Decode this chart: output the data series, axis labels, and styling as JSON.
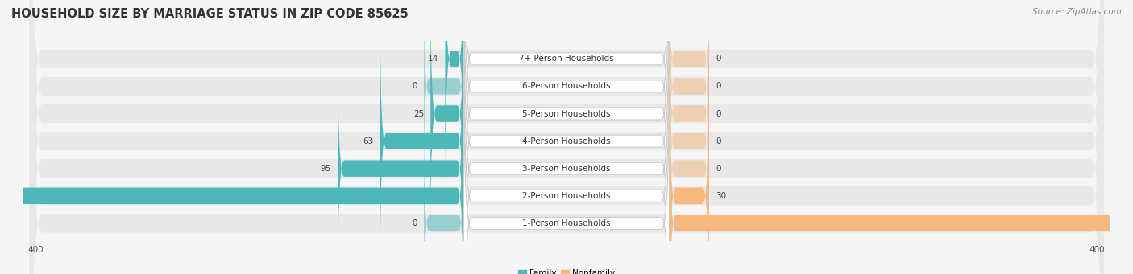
{
  "title": "HOUSEHOLD SIZE BY MARRIAGE STATUS IN ZIP CODE 85625",
  "source": "Source: ZipAtlas.com",
  "categories": [
    "7+ Person Households",
    "6-Person Households",
    "5-Person Households",
    "4-Person Households",
    "3-Person Households",
    "2-Person Households",
    "1-Person Households"
  ],
  "family_values": [
    14,
    0,
    25,
    63,
    95,
    387,
    0
  ],
  "nonfamily_values": [
    0,
    0,
    0,
    0,
    0,
    30,
    399
  ],
  "family_color": "#4DB8B8",
  "nonfamily_color": "#F5B97F",
  "label_box_color": "#ffffff",
  "label_box_edge": "#cccccc",
  "row_bg_color": "#e8e8e8",
  "fig_bg_color": "#f5f5f5",
  "max_val": 400,
  "stub_size": 30,
  "title_fontsize": 10.5,
  "label_fontsize": 7.5,
  "value_fontsize": 7.5,
  "source_fontsize": 7.5,
  "tick_fontsize": 7.5
}
